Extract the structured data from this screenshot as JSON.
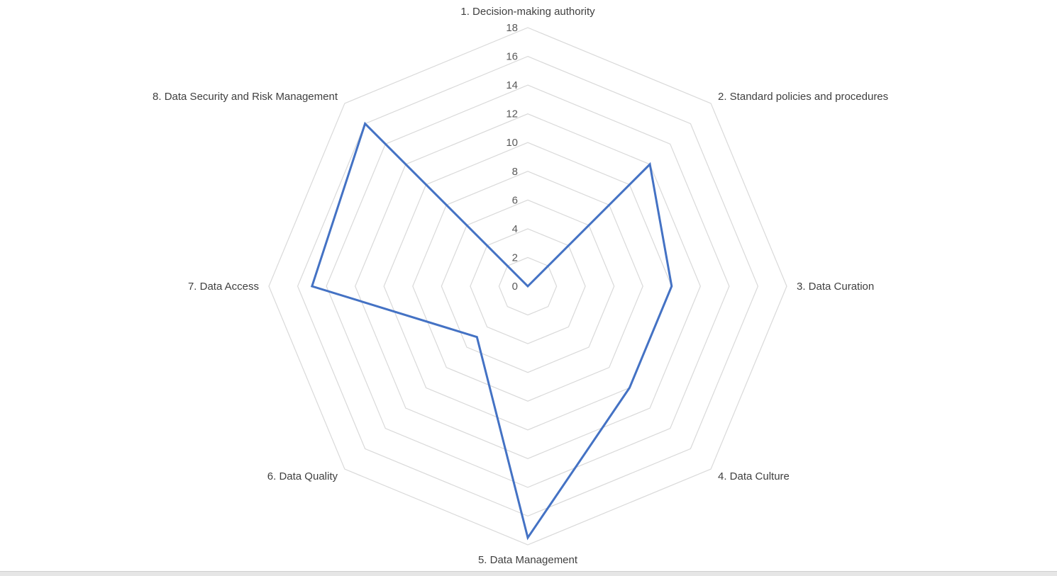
{
  "chart_data": {
    "type": "radar",
    "title": "",
    "categories": [
      "1. Decision-making authority",
      "2. Standard policies and procedures",
      "3. Data Curation",
      "4. Data Culture",
      "5. Data Management",
      "6. Data Quality",
      "7. Data Access",
      "8. Data Security and Risk Management"
    ],
    "series": [
      {
        "values": [
          0,
          12,
          10,
          10,
          17.5,
          5,
          15,
          16
        ]
      }
    ],
    "rlim": [
      0,
      18
    ],
    "rticks": [
      0,
      2,
      4,
      6,
      8,
      10,
      12,
      14,
      16,
      18
    ],
    "grid": true,
    "legend": "none",
    "colors": {
      "series": "#4472c4",
      "grid": "#d9d9d9"
    }
  }
}
